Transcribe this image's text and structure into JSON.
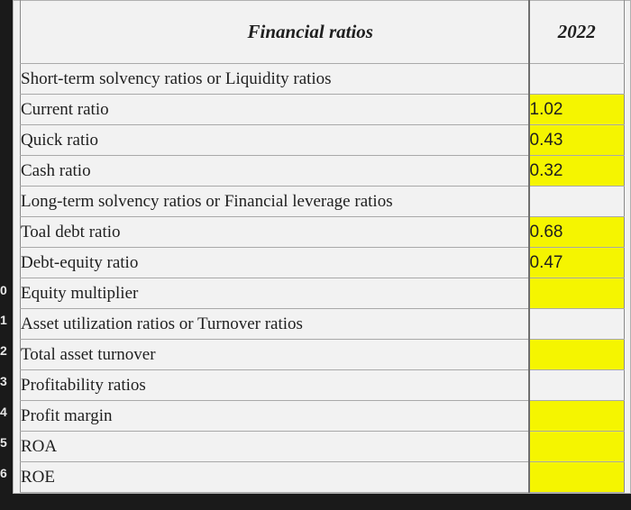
{
  "header": {
    "title": "Financial ratios",
    "year": "2022"
  },
  "rows": [
    {
      "label": "Short-term solvency ratios or Liquidity ratios",
      "kind": "section",
      "value": "",
      "highlight": false
    },
    {
      "label": "Current ratio",
      "kind": "item",
      "value": "1.02",
      "highlight": true
    },
    {
      "label": "Quick ratio",
      "kind": "item",
      "value": "0.43",
      "highlight": true
    },
    {
      "label": "Cash ratio",
      "kind": "item",
      "value": "0.32",
      "highlight": true
    },
    {
      "label": "Long-term solvency ratios or Financial leverage ratios",
      "kind": "section",
      "value": "",
      "highlight": false
    },
    {
      "label": "Toal debt ratio",
      "kind": "item",
      "value": "0.68",
      "highlight": true
    },
    {
      "label": "Debt-equity ratio",
      "kind": "item",
      "value": "0.47",
      "highlight": true
    },
    {
      "label": "Equity multiplier",
      "kind": "item",
      "value": "",
      "highlight": true
    },
    {
      "label": "Asset utilization ratios or Turnover ratios",
      "kind": "section",
      "value": "",
      "highlight": false
    },
    {
      "label": "Total asset turnover",
      "kind": "item",
      "value": "",
      "highlight": true
    },
    {
      "label": "Profitability ratios",
      "kind": "section",
      "value": "",
      "highlight": false
    },
    {
      "label": "Profit margin",
      "kind": "item",
      "value": "",
      "highlight": true
    },
    {
      "label": "ROA",
      "kind": "item",
      "value": "",
      "highlight": true
    },
    {
      "label": "ROE",
      "kind": "item",
      "value": "",
      "highlight": true
    }
  ],
  "gutter_marks": [
    "0",
    "1",
    "2",
    "3",
    "4",
    "5",
    "6"
  ],
  "colors": {
    "highlight": "#f5f500",
    "sheet": "#f2f2f2"
  }
}
